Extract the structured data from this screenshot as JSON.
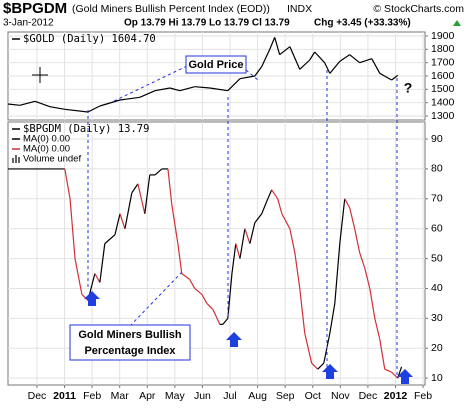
{
  "header": {
    "symbol": "$BPGDM",
    "description": "(Gold Miners Bullish Percent Index (EOD))",
    "exchange": "INDX",
    "copyright": "© StockCharts.com",
    "date": "3-Jan-2012",
    "quote": "Op 13.79  Hi 13.79  Lo 13.79  Cl 13.79",
    "change": "Chg +3.45 (+33.33%)"
  },
  "chart_data": [
    {
      "type": "line",
      "series": [
        {
          "name": "$GOLD (Daily) 1604.70",
          "color": "#000000",
          "x": [
            -1.05,
            -0.62,
            -0.07,
            0.47,
            1.01,
            1.85,
            2.28,
            3.01,
            3.73,
            4.28,
            4.82,
            5.18,
            5.72,
            6.27,
            6.92,
            7.36,
            7.9,
            8.15,
            8.44,
            8.62,
            8.8,
            9.17,
            9.53,
            9.89,
            10.07,
            10.43,
            10.62,
            10.98,
            11.34,
            11.7,
            12.14,
            12.43,
            12.86,
            13.08
          ],
          "values": [
            1390,
            1380,
            1410,
            1370,
            1350,
            1330,
            1375,
            1420,
            1440,
            1490,
            1510,
            1490,
            1520,
            1510,
            1490,
            1580,
            1600,
            1670,
            1800,
            1890,
            1760,
            1820,
            1650,
            1720,
            1780,
            1700,
            1620,
            1710,
            1760,
            1700,
            1730,
            1620,
            1570,
            1604.7
          ]
        }
      ],
      "xlim": [
        -1.05,
        14.07
      ],
      "ylim": [
        1270,
        1930
      ],
      "yticks": [
        1300,
        1400,
        1500,
        1600,
        1700,
        1800,
        1900
      ],
      "grid": true
    },
    {
      "type": "line",
      "series": [
        {
          "name": "$BPGDM (Daily) 13.79",
          "color": "#000000",
          "down_color": "#d0303a",
          "x": [
            -1.05,
            1.01,
            1.2,
            1.38,
            1.63,
            1.85,
            2.1,
            2.28,
            2.46,
            2.83,
            3.01,
            3.19,
            3.44,
            3.66,
            3.91,
            4.09,
            4.28,
            4.53,
            4.75,
            4.89,
            5.11,
            5.25,
            5.54,
            5.72,
            5.98,
            6.16,
            6.38,
            6.63,
            6.74,
            6.92,
            7.07,
            7.21,
            7.36,
            7.54,
            7.72,
            7.9,
            8.15,
            8.37,
            8.51,
            8.73,
            8.88,
            9.17,
            9.35,
            9.53,
            9.71,
            9.96,
            10.18,
            10.4,
            10.62,
            10.8,
            10.98,
            11.16,
            11.34,
            11.52,
            11.7,
            11.88,
            12.07,
            12.25,
            12.43,
            12.61,
            12.86,
            13.08,
            13.22
          ],
          "values": [
            80,
            80,
            70,
            50,
            38,
            36,
            45,
            42,
            55,
            58,
            65,
            60,
            72,
            75,
            65,
            78,
            78,
            80,
            80,
            68,
            55,
            45,
            43,
            40,
            38,
            35,
            33,
            28,
            28,
            30,
            45,
            55,
            50,
            60,
            55,
            62,
            65,
            70,
            73,
            70,
            65,
            60,
            52,
            40,
            25,
            15,
            13,
            15,
            25,
            35,
            55,
            70,
            67,
            60,
            52,
            47,
            40,
            30,
            23,
            13,
            12,
            10,
            13.79
          ]
        }
      ],
      "legend_extra": [
        {
          "label": "MA(0) 0.00",
          "color": "#000000"
        },
        {
          "label": "MA(0) 0.00",
          "color": "#d0303a"
        },
        {
          "label": "Volume undef",
          "color": "#666666"
        }
      ],
      "xlim": [
        -1.05,
        14.07
      ],
      "ylim": [
        7.7,
        95.7
      ],
      "yticks": [
        10,
        20,
        30,
        40,
        50,
        60,
        70,
        80,
        90
      ],
      "xticks": [
        {
          "value": 0,
          "label": "Dec"
        },
        {
          "value": 1,
          "label": "2011"
        },
        {
          "value": 2,
          "label": "Feb"
        },
        {
          "value": 3,
          "label": "Mar"
        },
        {
          "value": 4,
          "label": "Apr"
        },
        {
          "value": 5,
          "label": "May"
        },
        {
          "value": 6,
          "label": "Jun"
        },
        {
          "value": 7,
          "label": "Jul"
        },
        {
          "value": 8,
          "label": "Aug"
        },
        {
          "value": 9,
          "label": "Sep"
        },
        {
          "value": 10,
          "label": "Oct"
        },
        {
          "value": 11,
          "label": "Nov"
        },
        {
          "value": 12,
          "label": "Dec"
        },
        {
          "value": 13,
          "label": "2012"
        },
        {
          "value": 14,
          "label": "Feb"
        }
      ],
      "grid": true
    }
  ],
  "annotations": {
    "gold_price": "Gold Price",
    "bpi_line1": "Gold Miners Bullish",
    "bpi_line2": "Percentage Index",
    "question": "?"
  }
}
